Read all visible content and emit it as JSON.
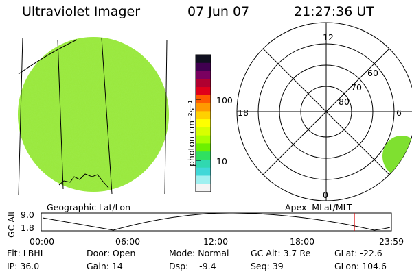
{
  "header": {
    "instrument": "Ultraviolet Imager",
    "date": "07 Jun 07",
    "time": "21:27:36 UT"
  },
  "colorbar": {
    "unit_label": "photon cm⁻²s⁻¹",
    "ticks": [
      "100",
      "10"
    ],
    "colors": [
      "#101020",
      "#400050",
      "#7a0060",
      "#b00030",
      "#e0001a",
      "#ff5a00",
      "#ff9900",
      "#ffd000",
      "#ffff00",
      "#d8ff00",
      "#a8ff00",
      "#6cf000",
      "#30e060",
      "#30d8b0",
      "#40d8d8",
      "#a0f0f0",
      "#f4f4f4"
    ]
  },
  "left_map": {
    "label": "Geographic Lat/Lon",
    "disk_color": "#9ae83a"
  },
  "polar_plot": {
    "label": "Apex  MLat/MLT",
    "mlt_labels": {
      "top": "12",
      "left": "18",
      "right": "6",
      "bottom": "0"
    },
    "lat_labels": [
      "60",
      "70",
      "80"
    ]
  },
  "altitude_plot": {
    "ylabel": "GC Alt",
    "yticks": [
      "9.0",
      "1.8"
    ],
    "xticks": [
      "00:00",
      "06:00",
      "12:00",
      "18:00",
      "23:59"
    ],
    "marker_color": "#dd0000"
  },
  "info": {
    "flt": "Flt: LBHL",
    "ip": "IP: 36.0",
    "door": "Door: Open",
    "gain": "Gain: 14",
    "mode": "Mode: Normal",
    "dsp": "Dsp:    -9.4",
    "gc_alt": "GC Alt: 3.7 Re",
    "seq": "Seq: 39",
    "glat": "GLat: -22.6",
    "glon": "GLon: 104.6"
  }
}
